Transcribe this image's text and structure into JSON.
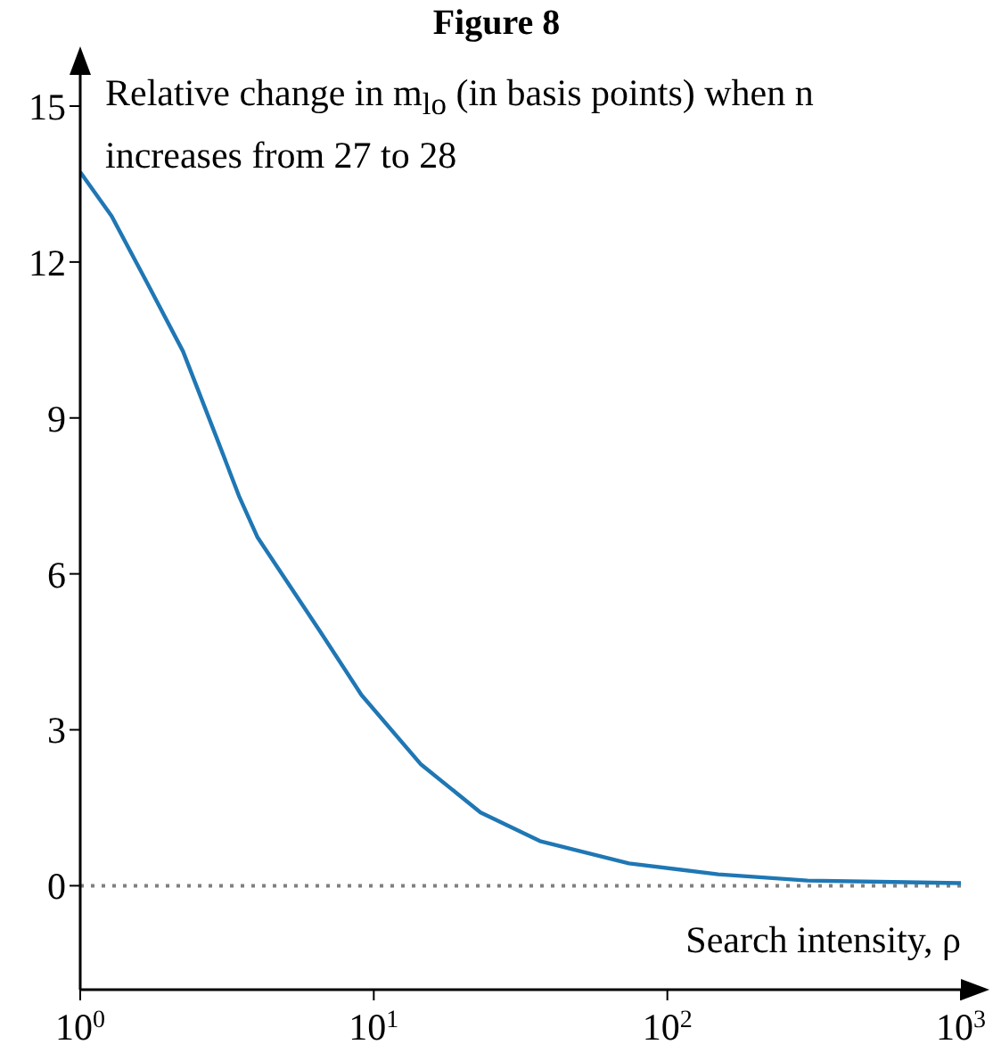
{
  "chart_data": {
    "type": "line",
    "title": "Figure 8",
    "ylabel": "Relative change in m$_{lo}$ (in basis points) when n increases from 27 to 28",
    "xlabel": "Search intensity, ρ",
    "log": "x",
    "x": [
      1,
      1.28,
      1.69,
      2.24,
      2.97,
      3.49,
      4.02,
      4.73,
      6.55,
      9.08,
      14.5,
      23.1,
      36.8,
      74,
      149,
      300,
      1000
    ],
    "series": [
      {
        "color": "#1f77b4",
        "values": [
          13.73,
          12.88,
          11.6,
          10.28,
          8.5,
          7.47,
          6.7,
          6.1,
          4.9,
          3.67,
          2.33,
          1.41,
          0.86,
          0.43,
          0.22,
          0.1,
          0.05
        ]
      }
    ],
    "xlim": [
      1,
      1000
    ],
    "xticks": [
      {
        "value": 1,
        "label": "10$^{0}$"
      },
      {
        "value": 10,
        "label": "10$^{1}$"
      },
      {
        "value": 100,
        "label": "10$^{2}$"
      },
      {
        "value": 1000,
        "label": "10$^{3}$"
      }
    ],
    "ylim": [
      -2,
      15.6
    ],
    "yticks": [
      0,
      3,
      6,
      9,
      12,
      15
    ],
    "ref_lines": [
      {
        "axis": "y",
        "value": 0,
        "color": "#808080",
        "line_style": "dotted"
      }
    ],
    "marker": "none",
    "line_style": "solid"
  }
}
